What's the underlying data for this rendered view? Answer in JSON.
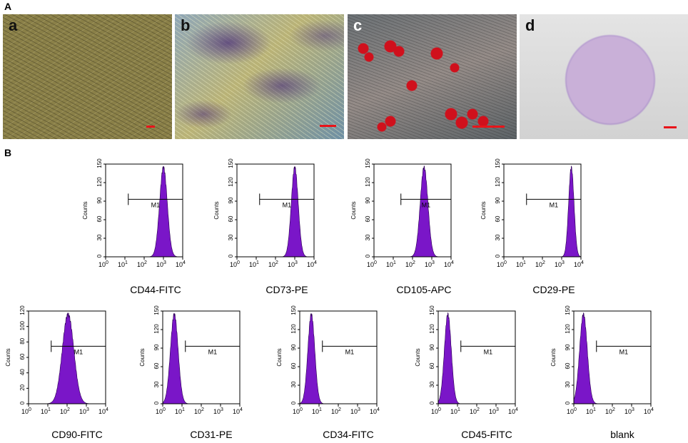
{
  "figure": {
    "panel_A": "A",
    "panel_B": "B",
    "photos": [
      {
        "label": "a",
        "bg": "#8a8048"
      },
      {
        "label": "b",
        "bg": "#6f7c86"
      },
      {
        "label": "c",
        "bg": "#7a7470"
      },
      {
        "label": "d",
        "bg": "#dcdcdc"
      }
    ]
  },
  "chart_data": [
    {
      "type": "area",
      "marker": "CD44-FITC",
      "xscale": "log",
      "xlim": [
        1,
        10000
      ],
      "yticks": [
        0,
        30,
        60,
        90,
        120,
        150
      ],
      "ylabel": "Counts",
      "gate_label": "M1",
      "gate": [
        15,
        10000
      ],
      "peak_log10": 3.0,
      "sigma": 0.2,
      "fill": "#7a16c8"
    },
    {
      "type": "area",
      "marker": "CD73-PE",
      "xscale": "log",
      "xlim": [
        1,
        10000
      ],
      "yticks": [
        0,
        30,
        60,
        90,
        120,
        150
      ],
      "ylabel": "Counts",
      "gate_label": "M1",
      "gate": [
        15,
        10000
      ],
      "peak_log10": 3.0,
      "sigma": 0.18,
      "fill": "#7a16c8"
    },
    {
      "type": "area",
      "marker": "CD105-APC",
      "xscale": "log",
      "xlim": [
        1,
        10000
      ],
      "yticks": [
        0,
        30,
        60,
        90,
        120,
        150
      ],
      "ylabel": "Counts",
      "gate_label": "M1",
      "gate": [
        25,
        10000
      ],
      "peak_log10": 2.6,
      "sigma": 0.2,
      "fill": "#7a16c8"
    },
    {
      "type": "area",
      "marker": "CD29-PE",
      "xscale": "log",
      "xlim": [
        1,
        10000
      ],
      "yticks": [
        0,
        30,
        60,
        90,
        120,
        150
      ],
      "ylabel": "Counts",
      "gate_label": "M1",
      "gate": [
        15,
        10000
      ],
      "peak_log10": 3.5,
      "sigma": 0.14,
      "fill": "#7a16c8"
    },
    {
      "type": "area",
      "marker": "CD90-FITC",
      "xscale": "log",
      "xlim": [
        1,
        10000
      ],
      "yticks": [
        0,
        20,
        40,
        60,
        80,
        100,
        120
      ],
      "ylabel": "Counts",
      "gate_label": "M1",
      "gate": [
        15,
        10000
      ],
      "peak_log10": 2.05,
      "sigma": 0.3,
      "fill": "#7a16c8"
    },
    {
      "type": "area",
      "marker": "CD31-PE",
      "xscale": "log",
      "xlim": [
        1,
        10000
      ],
      "yticks": [
        0,
        30,
        60,
        90,
        120,
        150
      ],
      "ylabel": "Counts",
      "gate_label": "M1",
      "gate": [
        15,
        10000
      ],
      "peak_log10": 0.6,
      "sigma": 0.2,
      "fill": "#7a16c8"
    },
    {
      "type": "area",
      "marker": "CD34-FITC",
      "xscale": "log",
      "xlim": [
        1,
        10000
      ],
      "yticks": [
        0,
        30,
        60,
        90,
        120,
        150
      ],
      "ylabel": "Counts",
      "gate_label": "M1",
      "gate": [
        15,
        10000
      ],
      "peak_log10": 0.6,
      "sigma": 0.18,
      "fill": "#7a16c8"
    },
    {
      "type": "area",
      "marker": "CD45-FITC",
      "xscale": "log",
      "xlim": [
        1,
        10000
      ],
      "yticks": [
        0,
        30,
        60,
        90,
        120,
        150
      ],
      "ylabel": "Counts",
      "gate_label": "M1",
      "gate": [
        15,
        10000
      ],
      "peak_log10": 0.5,
      "sigma": 0.18,
      "fill": "#7a16c8"
    },
    {
      "type": "area",
      "marker": "blank",
      "xscale": "log",
      "xlim": [
        1,
        10000
      ],
      "yticks": [
        0,
        30,
        60,
        90,
        120,
        150
      ],
      "ylabel": "Counts",
      "gate_label": "M1",
      "gate": [
        15,
        10000
      ],
      "peak_log10": 0.5,
      "sigma": 0.2,
      "fill": "#7a16c8"
    }
  ]
}
